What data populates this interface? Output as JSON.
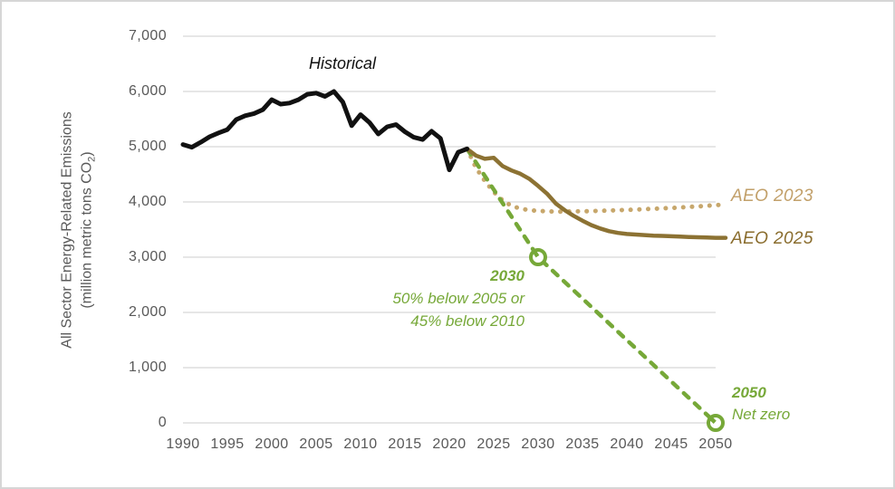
{
  "colors": {
    "historical": "#111111",
    "aeo2023_line": "#c7a76c",
    "aeo2023_label": "#c2a06a",
    "aeo2025_line": "#8c7233",
    "aeo2025_label": "#8a6d2e",
    "target_green": "#76a838",
    "gridline": "#d6d6d6",
    "axis_text": "#595959",
    "background": "#ffffff"
  },
  "chart_data": {
    "type": "line",
    "title": "",
    "ylabel_line1": "All Sector Energy-Related Emissions",
    "ylabel_line2_pre": "(million metric tons CO",
    "ylabel_line2_sub": "2",
    "ylabel_line2_post": ")",
    "xlabel": "",
    "xlim": [
      1990,
      2050
    ],
    "ylim": [
      0,
      7000
    ],
    "grid": "horizontal",
    "legend_position": "right-of-plot inline labels",
    "x_ticks": [
      {
        "v": 1990,
        "label": "1990"
      },
      {
        "v": 1995,
        "label": "1995"
      },
      {
        "v": 2000,
        "label": "2000"
      },
      {
        "v": 2005,
        "label": "2005"
      },
      {
        "v": 2010,
        "label": "2010"
      },
      {
        "v": 2015,
        "label": "2015"
      },
      {
        "v": 2020,
        "label": "2020"
      },
      {
        "v": 2025,
        "label": "2025"
      },
      {
        "v": 2030,
        "label": "2030"
      },
      {
        "v": 2035,
        "label": "2035"
      },
      {
        "v": 2040,
        "label": "2040"
      },
      {
        "v": 2045,
        "label": "2045"
      },
      {
        "v": 2050,
        "label": "2050"
      }
    ],
    "y_ticks": [
      {
        "v": 7000,
        "label": "7,000"
      },
      {
        "v": 6000,
        "label": "6,000"
      },
      {
        "v": 5000,
        "label": "5,000"
      },
      {
        "v": 4000,
        "label": "4,000"
      },
      {
        "v": 3000,
        "label": "3,000"
      },
      {
        "v": 2000,
        "label": "2,000"
      },
      {
        "v": 1000,
        "label": "1,000"
      },
      {
        "v": 0,
        "label": "0"
      }
    ],
    "series": [
      {
        "name": "AEO 2023",
        "style": "dotted",
        "color": "#c7a76c",
        "x": [
          2022,
          2023,
          2024,
          2025,
          2026,
          2027,
          2028,
          2029,
          2030,
          2031,
          2032,
          2033,
          2034,
          2035,
          2036,
          2037,
          2038,
          2039,
          2040,
          2041,
          2042,
          2043,
          2044,
          2045,
          2046,
          2047,
          2048,
          2049,
          2050
        ],
        "values": [
          4960,
          4620,
          4380,
          4180,
          4030,
          3930,
          3880,
          3850,
          3840,
          3830,
          3825,
          3825,
          3830,
          3830,
          3835,
          3840,
          3845,
          3850,
          3855,
          3860,
          3870,
          3875,
          3885,
          3890,
          3900,
          3910,
          3920,
          3930,
          3945
        ]
      },
      {
        "name": "Net-zero target",
        "style": "dashed",
        "color": "#76a838",
        "x": [
          2022,
          2030,
          2050
        ],
        "values": [
          4960,
          3000,
          0
        ],
        "markers": [
          {
            "x": 2030,
            "v": 3000
          },
          {
            "x": 2050,
            "v": 0
          }
        ]
      },
      {
        "name": "AEO 2025",
        "style": "solid",
        "color": "#8c7233",
        "x": [
          2022,
          2023,
          2024,
          2025,
          2026,
          2027,
          2028,
          2029,
          2030,
          2031,
          2032,
          2033,
          2034,
          2035,
          2036,
          2037,
          2038,
          2039,
          2040,
          2041,
          2042,
          2043,
          2044,
          2045,
          2046,
          2047,
          2048,
          2049,
          2050
        ],
        "values": [
          4960,
          4840,
          4780,
          4800,
          4650,
          4570,
          4510,
          4420,
          4290,
          4150,
          3970,
          3850,
          3750,
          3660,
          3580,
          3520,
          3470,
          3440,
          3420,
          3410,
          3400,
          3390,
          3385,
          3378,
          3372,
          3366,
          3360,
          3355,
          3350
        ]
      },
      {
        "name": "Historical",
        "style": "solid",
        "color": "#111111",
        "x": [
          1990,
          1991,
          1992,
          1993,
          1994,
          1995,
          1996,
          1997,
          1998,
          1999,
          2000,
          2001,
          2002,
          2003,
          2004,
          2005,
          2006,
          2007,
          2008,
          2009,
          2010,
          2011,
          2012,
          2013,
          2014,
          2015,
          2016,
          2017,
          2018,
          2019,
          2020,
          2021,
          2022
        ],
        "values": [
          5040,
          4990,
          5080,
          5180,
          5250,
          5310,
          5490,
          5560,
          5600,
          5670,
          5850,
          5770,
          5790,
          5850,
          5950,
          5970,
          5910,
          6000,
          5810,
          5380,
          5580,
          5440,
          5230,
          5360,
          5400,
          5270,
          5170,
          5130,
          5280,
          5150,
          4580,
          4900,
          4960
        ]
      }
    ],
    "annotations": {
      "historical": "Historical",
      "aeo2023": "AEO 2023",
      "aeo2025": "AEO 2025",
      "target_2030_year": "2030",
      "target_2030_line1": "50% below 2005 or",
      "target_2030_line2": "45% below 2010",
      "target_2050_year": "2050",
      "target_2050_label": "Net zero"
    }
  }
}
